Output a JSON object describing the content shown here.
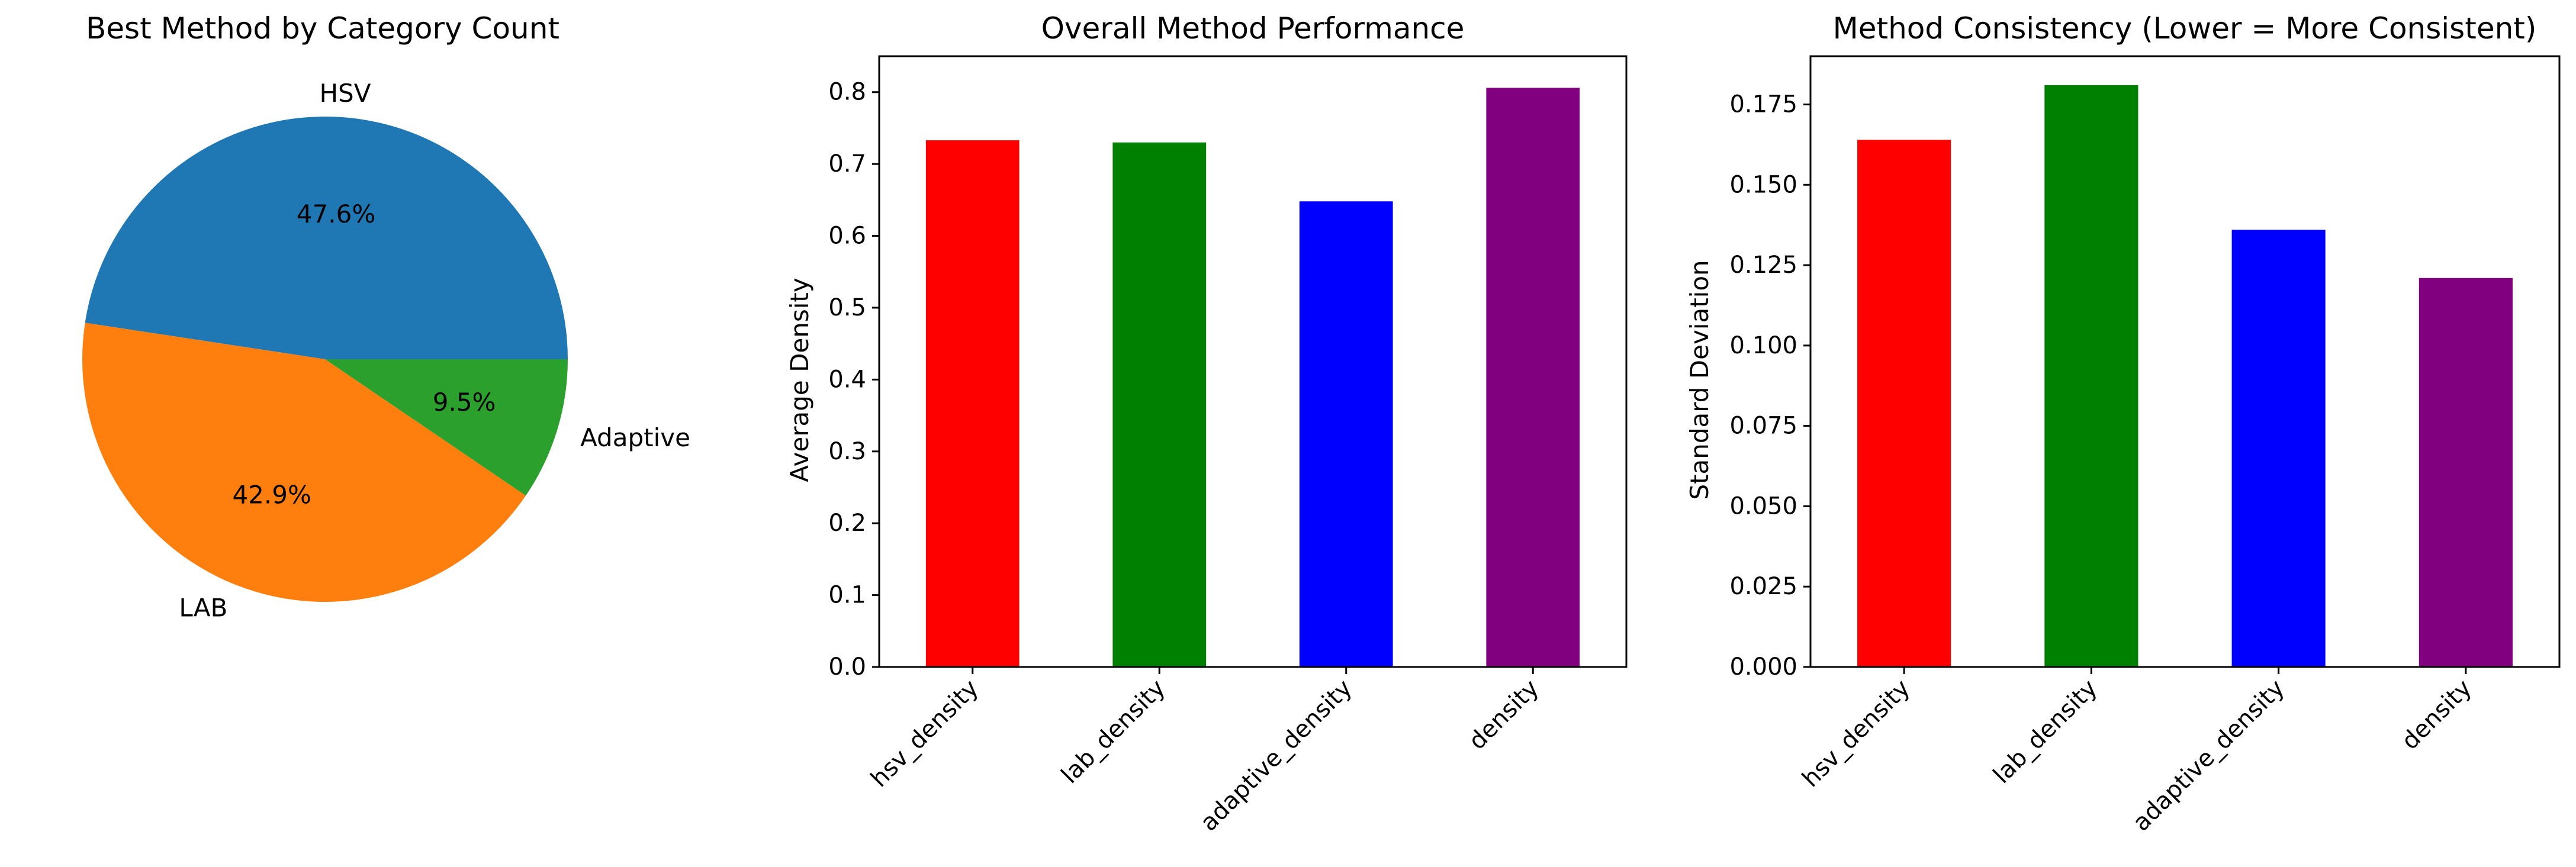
{
  "chart_data": [
    {
      "type": "pie",
      "title": "Best Method by Category Count",
      "labels": [
        "HSV",
        "LAB",
        "Adaptive"
      ],
      "values": [
        47.6,
        42.9,
        9.5
      ],
      "autopct_labels": [
        "47.6%",
        "42.9%",
        "9.5%"
      ],
      "colors": [
        "#1f77b4",
        "#ff7f0e",
        "#2ca02c"
      ]
    },
    {
      "type": "bar",
      "title": "Overall Method Performance",
      "xlabel": "",
      "ylabel": "Average Density",
      "categories": [
        "hsv_density",
        "lab_density",
        "adaptive_density",
        "density"
      ],
      "values": [
        0.733,
        0.73,
        0.648,
        0.806
      ],
      "colors": [
        "#ff0000",
        "#008000",
        "#0000ff",
        "#800080"
      ],
      "ylim": [
        0,
        0.85
      ],
      "yticks": [
        0.0,
        0.1,
        0.2,
        0.3,
        0.4,
        0.5,
        0.6,
        0.7,
        0.8
      ],
      "ytick_labels": [
        "0.0",
        "0.1",
        "0.2",
        "0.3",
        "0.4",
        "0.5",
        "0.6",
        "0.7",
        "0.8"
      ],
      "grid": false
    },
    {
      "type": "bar",
      "title": "Method Consistency (Lower = More Consistent)",
      "xlabel": "",
      "ylabel": "Standard Deviation",
      "categories": [
        "hsv_density",
        "lab_density",
        "adaptive_density",
        "density"
      ],
      "values": [
        0.164,
        0.181,
        0.136,
        0.121
      ],
      "colors": [
        "#ff0000",
        "#008000",
        "#0000ff",
        "#800080"
      ],
      "ylim": [
        0,
        0.19
      ],
      "yticks": [
        0.0,
        0.025,
        0.05,
        0.075,
        0.1,
        0.125,
        0.15,
        0.175
      ],
      "ytick_labels": [
        "0.000",
        "0.025",
        "0.050",
        "0.075",
        "0.100",
        "0.125",
        "0.150",
        "0.175"
      ],
      "grid": false
    }
  ]
}
